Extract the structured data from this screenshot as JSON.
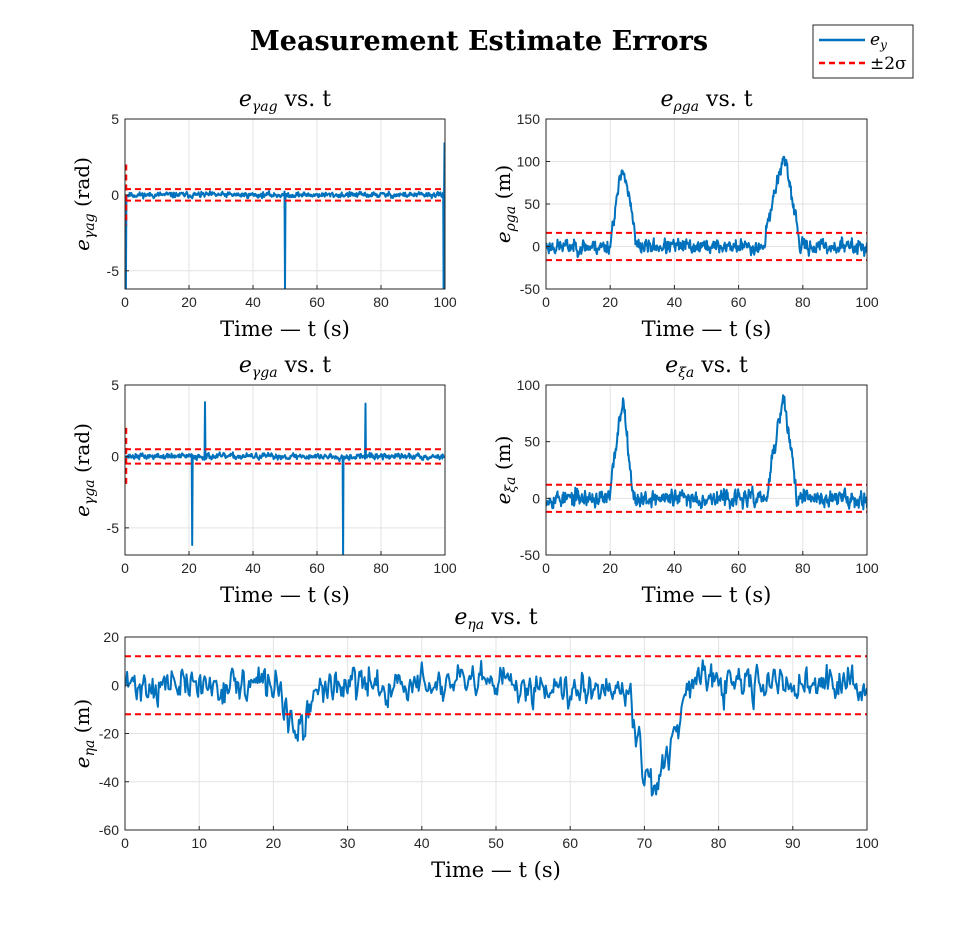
{
  "figure": {
    "title": "Measurement Estimate Errors",
    "colors": {
      "series": "#0072BD",
      "bound": "#FF0000"
    },
    "legend": {
      "placement": "top-right",
      "entries": [
        {
          "main": "e",
          "sub": "y"
        },
        {
          "main": "±2σ",
          "sub": ""
        }
      ]
    }
  },
  "chart_data": [
    {
      "type": "line",
      "title": {
        "main": "e",
        "sub": "γag",
        "suffix": " vs. t"
      },
      "xlabel": "Time — t (s)",
      "ylabel": {
        "main": "e",
        "sub": "γag",
        "unit": "(rad)"
      },
      "xlim": [
        0,
        100
      ],
      "ylim": [
        -6.2,
        5
      ],
      "xticks": [
        0,
        20,
        40,
        60,
        80,
        100
      ],
      "yticks": [
        -5,
        0,
        5
      ],
      "grid": true,
      "bound": 0.38,
      "series": [
        {
          "kind": "noise",
          "base": 0,
          "noise": 0.15,
          "seed": 11,
          "spikes": [
            {
              "x": 0.3,
              "y": -6.2
            },
            {
              "x": 50,
              "y": -6.2
            },
            {
              "x": 99.6,
              "y": -6.2
            },
            {
              "x": 99.9,
              "y": 3.4
            }
          ]
        }
      ],
      "bound_spike": {
        "x": 0,
        "y": 2.0
      }
    },
    {
      "type": "line",
      "title": {
        "main": "e",
        "sub": "ρga",
        "suffix": " vs. t"
      },
      "xlabel": "Time — t (s)",
      "ylabel": {
        "main": "e",
        "sub": "ρga",
        "unit": "(m)"
      },
      "xlim": [
        0,
        100
      ],
      "ylim": [
        -50,
        150
      ],
      "xticks": [
        0,
        20,
        40,
        60,
        80,
        100
      ],
      "yticks": [
        -50,
        0,
        50,
        100,
        150
      ],
      "grid": true,
      "bound": 16,
      "series": [
        {
          "kind": "noise",
          "base": 0,
          "noise": 7,
          "seed": 23,
          "bumps": [
            {
              "start": 20,
              "peak": 24,
              "end": 28,
              "amp": 95
            },
            {
              "start": 68,
              "peak": 74,
              "end": 79,
              "amp": 105
            }
          ]
        }
      ]
    },
    {
      "type": "line",
      "title": {
        "main": "e",
        "sub": "γga",
        "suffix": " vs. t"
      },
      "xlabel": "Time — t (s)",
      "ylabel": {
        "main": "e",
        "sub": "γga",
        "unit": "(rad)"
      },
      "xlim": [
        0,
        100
      ],
      "ylim": [
        -6.9,
        5
      ],
      "xticks": [
        0,
        20,
        40,
        60,
        80,
        100
      ],
      "yticks": [
        -5,
        0,
        5
      ],
      "grid": true,
      "bound": 0.5,
      "series": [
        {
          "kind": "noise",
          "base": 0,
          "noise": 0.17,
          "seed": 37,
          "spikes": [
            {
              "x": 21,
              "y": -6.2
            },
            {
              "x": 25,
              "y": 3.8
            },
            {
              "x": 68.2,
              "y": -6.9
            },
            {
              "x": 75.2,
              "y": 3.7
            }
          ]
        }
      ],
      "bound_spike": {
        "x": 0,
        "y": 2.0
      }
    },
    {
      "type": "line",
      "title": {
        "main": "e",
        "sub": "ξa",
        "suffix": " vs. t"
      },
      "xlabel": "Time — t (s)",
      "ylabel": {
        "main": "e",
        "sub": "ξa",
        "unit": "(m)"
      },
      "xlim": [
        0,
        100
      ],
      "ylim": [
        -50,
        100
      ],
      "xticks": [
        0,
        20,
        40,
        60,
        80,
        100
      ],
      "yticks": [
        -50,
        0,
        50,
        100
      ],
      "grid": true,
      "bound": 12,
      "series": [
        {
          "kind": "noise",
          "base": 0,
          "noise": 6,
          "seed": 53,
          "bumps": [
            {
              "start": 20,
              "peak": 24,
              "end": 27,
              "amp": 88
            },
            {
              "start": 69,
              "peak": 74,
              "end": 78,
              "amp": 88
            }
          ]
        }
      ]
    },
    {
      "type": "line",
      "title": {
        "main": "e",
        "sub": "ηa",
        "suffix": " vs. t"
      },
      "xlabel": "Time — t (s)",
      "ylabel": {
        "main": "e",
        "sub": "ηa",
        "unit": "(m)"
      },
      "xlim": [
        0,
        100
      ],
      "ylim": [
        -60,
        20
      ],
      "xticks": [
        0,
        10,
        20,
        30,
        40,
        50,
        60,
        70,
        80,
        90,
        100
      ],
      "yticks": [
        -60,
        -40,
        -20,
        0,
        20
      ],
      "grid": true,
      "bound": 12,
      "series": [
        {
          "kind": "noise",
          "base": 0,
          "noise": 6,
          "seed": 71,
          "bumps": [
            {
              "start": 21,
              "peak": 23,
              "end": 26,
              "amp": -24
            },
            {
              "start": 68,
              "peak": 71,
              "end": 76,
              "amp": -45
            }
          ]
        }
      ]
    }
  ]
}
